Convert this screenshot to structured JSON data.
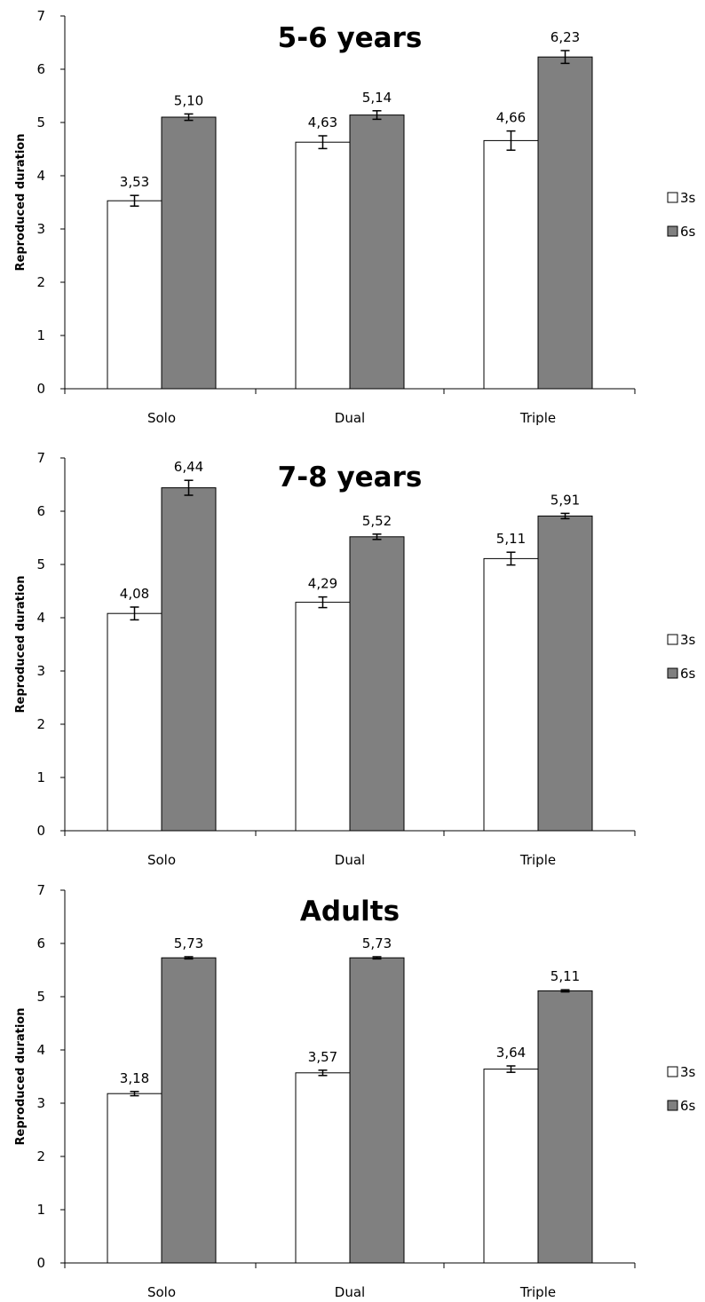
{
  "chart_data": [
    {
      "type": "bar",
      "title": "5-6 years",
      "ylabel": "Reproduced duration",
      "xlabel": "",
      "ylim": [
        0,
        7
      ],
      "yticks": [
        0,
        1,
        2,
        3,
        4,
        5,
        6,
        7
      ],
      "categories": [
        "Solo",
        "Dual",
        "Triple"
      ],
      "series": [
        {
          "name": "3s",
          "color": "#ffffff",
          "values": [
            3.53,
            4.63,
            4.66
          ],
          "labels": [
            "3,53",
            "4,63",
            "4,66"
          ],
          "errors": [
            0.1,
            0.12,
            0.18
          ]
        },
        {
          "name": "6s",
          "color": "#808080",
          "values": [
            5.1,
            5.14,
            6.23
          ],
          "labels": [
            "5,10",
            "5,14",
            "6,23"
          ],
          "errors": [
            0.06,
            0.08,
            0.12
          ]
        }
      ],
      "legend": "right",
      "grid": false
    },
    {
      "type": "bar",
      "title": "7-8 years",
      "ylabel": "Reproduced duration",
      "xlabel": "",
      "ylim": [
        0,
        7
      ],
      "yticks": [
        0,
        1,
        2,
        3,
        4,
        5,
        6,
        7
      ],
      "categories": [
        "Solo",
        "Dual",
        "Triple"
      ],
      "series": [
        {
          "name": "3s",
          "color": "#ffffff",
          "values": [
            4.08,
            4.29,
            5.11
          ],
          "labels": [
            "4,08",
            "4,29",
            "5,11"
          ],
          "errors": [
            0.12,
            0.1,
            0.12
          ]
        },
        {
          "name": "6s",
          "color": "#808080",
          "values": [
            6.44,
            5.52,
            5.91
          ],
          "labels": [
            "6,44",
            "5,52",
            "5,91"
          ],
          "errors": [
            0.14,
            0.05,
            0.05
          ]
        }
      ],
      "legend": "right",
      "grid": false
    },
    {
      "type": "bar",
      "title": "Adults",
      "ylabel": "Reproduced duration",
      "xlabel": "",
      "ylim": [
        0,
        7
      ],
      "yticks": [
        0,
        1,
        2,
        3,
        4,
        5,
        6,
        7
      ],
      "categories": [
        "Solo",
        "Dual",
        "Triple"
      ],
      "series": [
        {
          "name": "3s",
          "color": "#ffffff",
          "values": [
            3.18,
            3.57,
            3.64
          ],
          "labels": [
            "3,18",
            "3,57",
            "3,64"
          ],
          "errors": [
            0.04,
            0.05,
            0.06
          ]
        },
        {
          "name": "6s",
          "color": "#808080",
          "values": [
            5.73,
            5.73,
            5.11
          ],
          "labels": [
            "5,73",
            "5,73",
            "5,11"
          ],
          "errors": [
            0.02,
            0.02,
            0.02
          ]
        }
      ],
      "legend": "right",
      "grid": false
    }
  ]
}
